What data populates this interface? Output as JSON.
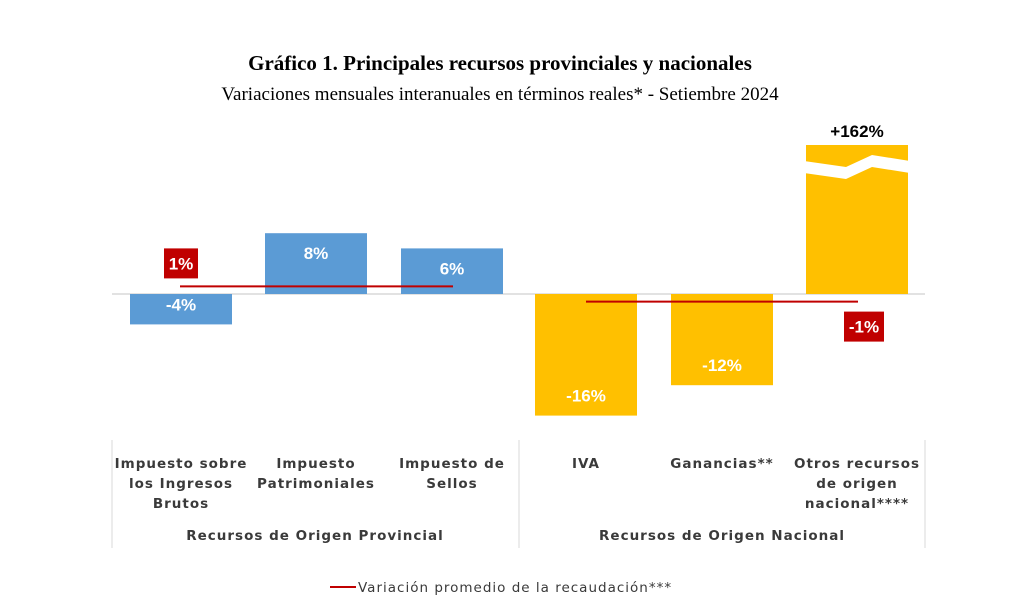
{
  "chart_data": {
    "type": "bar",
    "title": "Gráfico 1. Principales recursos provinciales y nacionales",
    "subtitle": "Variaciones mensuales interanuales en términos reales* - Setiembre 2024",
    "categories": [
      [
        "Impuesto sobre",
        "los Ingresos",
        "Brutos"
      ],
      [
        "Impuesto",
        "Patrimoniales"
      ],
      [
        "Impuesto de",
        "Sellos"
      ],
      [
        "IVA"
      ],
      [
        "Ganancias**"
      ],
      [
        "Otros recursos",
        "de origen",
        "nacional****"
      ]
    ],
    "values": [
      -4,
      8,
      6,
      -16,
      -12,
      162
    ],
    "value_labels": [
      "-4%",
      "8%",
      "6%",
      "-16%",
      "-12%",
      "+162%"
    ],
    "groups": [
      {
        "name": "Recursos de Origen Provincial",
        "members": [
          0,
          1,
          2
        ],
        "color": "#5b9bd5",
        "average": 1,
        "average_label": "1%"
      },
      {
        "name": "Recursos de Origen Nacional",
        "members": [
          3,
          4,
          5
        ],
        "color": "#ffc000",
        "average": -1,
        "average_label": "-1%"
      }
    ],
    "broken_axis_bar_index": 5,
    "average_line_color": "#c00000",
    "legend": {
      "label": "Variación promedio de la recaudación***",
      "placement": "bottom"
    },
    "grid": false
  }
}
